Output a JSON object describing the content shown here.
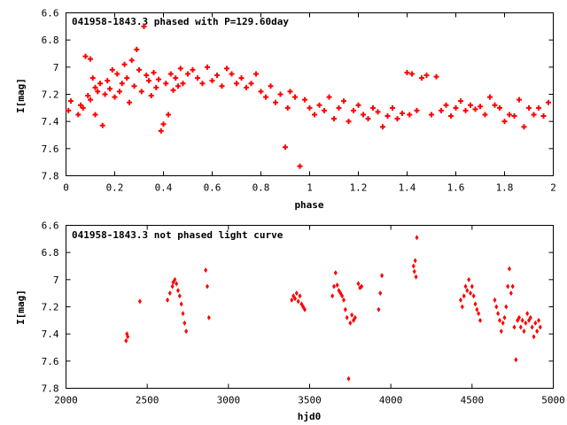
{
  "chart_data": [
    {
      "type": "scatter",
      "title": "041958-1843.3 phased with P=129.60day",
      "xlabel": "phase",
      "ylabel": "I[mag]",
      "xlim": [
        0,
        2
      ],
      "ylim": [
        6.6,
        7.8
      ],
      "y_inverted": true,
      "grid": false,
      "marker_color": "#ff0000",
      "x_ticks": [
        0,
        0.2,
        0.4,
        0.6,
        0.8,
        1,
        1.2,
        1.4,
        1.6,
        1.8,
        2
      ],
      "x_tick_labels": [
        "0",
        "0.2",
        "0.4",
        "0.6",
        "0.8",
        "1",
        "1.2",
        "1.4",
        "1.6",
        "1.8",
        "2"
      ],
      "y_ticks": [
        6.6,
        6.8,
        7,
        7.2,
        7.4,
        7.6,
        7.8
      ],
      "y_tick_labels": [
        "6.6",
        "6.8",
        "7",
        "7.2",
        "7.4",
        "7.6",
        "7.8"
      ],
      "x": [
        0.01,
        0.02,
        0.05,
        0.06,
        0.07,
        0.08,
        0.09,
        0.1,
        0.1,
        0.11,
        0.12,
        0.12,
        0.13,
        0.14,
        0.15,
        0.16,
        0.17,
        0.18,
        0.19,
        0.2,
        0.21,
        0.22,
        0.23,
        0.24,
        0.25,
        0.26,
        0.27,
        0.28,
        0.29,
        0.3,
        0.31,
        0.32,
        0.33,
        0.34,
        0.35,
        0.36,
        0.37,
        0.38,
        0.39,
        0.4,
        0.41,
        0.42,
        0.43,
        0.44,
        0.45,
        0.46,
        0.47,
        0.48,
        0.5,
        0.52,
        0.54,
        0.56,
        0.58,
        0.6,
        0.62,
        0.64,
        0.66,
        0.68,
        0.7,
        0.72,
        0.74,
        0.76,
        0.78,
        0.8,
        0.82,
        0.84,
        0.86,
        0.88,
        0.9,
        0.91,
        0.92,
        0.94,
        0.96,
        0.98,
        1.0,
        1.02,
        1.04,
        1.06,
        1.08,
        1.1,
        1.12,
        1.14,
        1.16,
        1.18,
        1.2,
        1.22,
        1.24,
        1.26,
        1.28,
        1.3,
        1.32,
        1.34,
        1.36,
        1.38,
        1.4,
        1.41,
        1.42,
        1.44,
        1.46,
        1.48,
        1.5,
        1.52,
        1.54,
        1.56,
        1.58,
        1.6,
        1.62,
        1.64,
        1.66,
        1.68,
        1.7,
        1.72,
        1.74,
        1.76,
        1.78,
        1.8,
        1.82,
        1.84,
        1.86,
        1.88,
        1.9,
        1.92,
        1.94,
        1.96,
        1.98
      ],
      "y": [
        7.32,
        7.25,
        7.35,
        7.28,
        7.3,
        6.92,
        7.21,
        6.94,
        7.24,
        7.08,
        7.15,
        7.35,
        7.18,
        7.12,
        7.43,
        7.2,
        7.1,
        7.16,
        7.02,
        7.22,
        7.05,
        7.18,
        7.12,
        6.98,
        7.08,
        7.26,
        6.95,
        7.14,
        6.87,
        7.02,
        7.18,
        6.7,
        7.06,
        7.1,
        7.21,
        7.04,
        7.15,
        7.09,
        7.47,
        7.42,
        7.12,
        7.35,
        7.05,
        7.17,
        7.08,
        7.14,
        7.01,
        7.12,
        7.05,
        7.02,
        7.08,
        7.12,
        7.0,
        7.1,
        7.06,
        7.14,
        7.01,
        7.05,
        7.12,
        7.08,
        7.15,
        7.12,
        7.05,
        7.18,
        7.22,
        7.14,
        7.26,
        7.2,
        7.59,
        7.3,
        7.18,
        7.22,
        7.73,
        7.24,
        7.3,
        7.35,
        7.28,
        7.32,
        7.22,
        7.38,
        7.3,
        7.25,
        7.4,
        7.32,
        7.28,
        7.35,
        7.38,
        7.3,
        7.33,
        7.44,
        7.36,
        7.3,
        7.38,
        7.34,
        7.04,
        7.35,
        7.05,
        7.32,
        7.08,
        7.06,
        7.35,
        7.07,
        7.32,
        7.28,
        7.36,
        7.3,
        7.25,
        7.32,
        7.28,
        7.31,
        7.29,
        7.35,
        7.22,
        7.28,
        7.3,
        7.4,
        7.35,
        7.36,
        7.24,
        7.44,
        7.3,
        7.35,
        7.3,
        7.36,
        7.26
      ]
    },
    {
      "type": "scatter",
      "title": "041958-1843.3 not phased light curve",
      "xlabel": "hjd0",
      "ylabel": "I[mag]",
      "xlim": [
        2000,
        5000
      ],
      "ylim": [
        6.6,
        7.8
      ],
      "y_inverted": true,
      "grid": false,
      "marker_color": "#ff0000",
      "x_ticks": [
        2000,
        2500,
        3000,
        3500,
        4000,
        4500,
        5000
      ],
      "x_tick_labels": [
        "2000",
        "2500",
        "3000",
        "3500",
        "4000",
        "4500",
        "5000"
      ],
      "y_ticks": [
        6.6,
        6.8,
        7,
        7.2,
        7.4,
        7.6,
        7.8
      ],
      "y_tick_labels": [
        "6.6",
        "6.8",
        "7",
        "7.2",
        "7.4",
        "7.6",
        "7.8"
      ],
      "x": [
        2370,
        2375,
        2380,
        2455,
        2625,
        2640,
        2655,
        2660,
        2670,
        2680,
        2690,
        2700,
        2710,
        2720,
        2730,
        2740,
        2860,
        2870,
        2880,
        3390,
        3400,
        3410,
        3420,
        3430,
        3440,
        3450,
        3460,
        3470,
        3640,
        3650,
        3660,
        3670,
        3680,
        3690,
        3700,
        3710,
        3720,
        3730,
        3740,
        3750,
        3760,
        3770,
        3780,
        3800,
        3810,
        3820,
        3925,
        3935,
        3945,
        4140,
        4145,
        4150,
        4155,
        4160,
        4430,
        4440,
        4450,
        4460,
        4470,
        4480,
        4490,
        4500,
        4510,
        4520,
        4530,
        4540,
        4550,
        4640,
        4650,
        4660,
        4670,
        4680,
        4690,
        4700,
        4710,
        4720,
        4730,
        4740,
        4750,
        4760,
        4770,
        4780,
        4790,
        4800,
        4810,
        4820,
        4830,
        4840,
        4850,
        4860,
        4870,
        4880,
        4890,
        4900,
        4910,
        4920
      ],
      "y": [
        7.45,
        7.4,
        7.42,
        7.16,
        7.15,
        7.1,
        7.05,
        7.02,
        7.0,
        7.03,
        7.08,
        7.12,
        7.18,
        7.25,
        7.32,
        7.38,
        6.93,
        7.05,
        7.28,
        7.15,
        7.12,
        7.14,
        7.1,
        7.16,
        7.12,
        7.18,
        7.2,
        7.22,
        7.12,
        7.05,
        6.95,
        7.04,
        7.08,
        7.1,
        7.12,
        7.15,
        7.22,
        7.28,
        7.73,
        7.32,
        7.26,
        7.3,
        7.28,
        7.03,
        7.06,
        7.05,
        7.22,
        7.1,
        6.97,
        6.9,
        6.94,
        6.86,
        6.98,
        6.69,
        7.15,
        7.2,
        7.12,
        7.05,
        7.08,
        7.0,
        7.1,
        7.05,
        7.12,
        7.18,
        7.22,
        7.25,
        7.3,
        7.15,
        7.2,
        7.25,
        7.3,
        7.38,
        7.32,
        7.28,
        7.2,
        7.05,
        6.92,
        7.1,
        7.05,
        7.35,
        7.59,
        7.3,
        7.28,
        7.35,
        7.3,
        7.38,
        7.32,
        7.25,
        7.3,
        7.28,
        7.35,
        7.42,
        7.32,
        7.38,
        7.3,
        7.35
      ]
    }
  ]
}
